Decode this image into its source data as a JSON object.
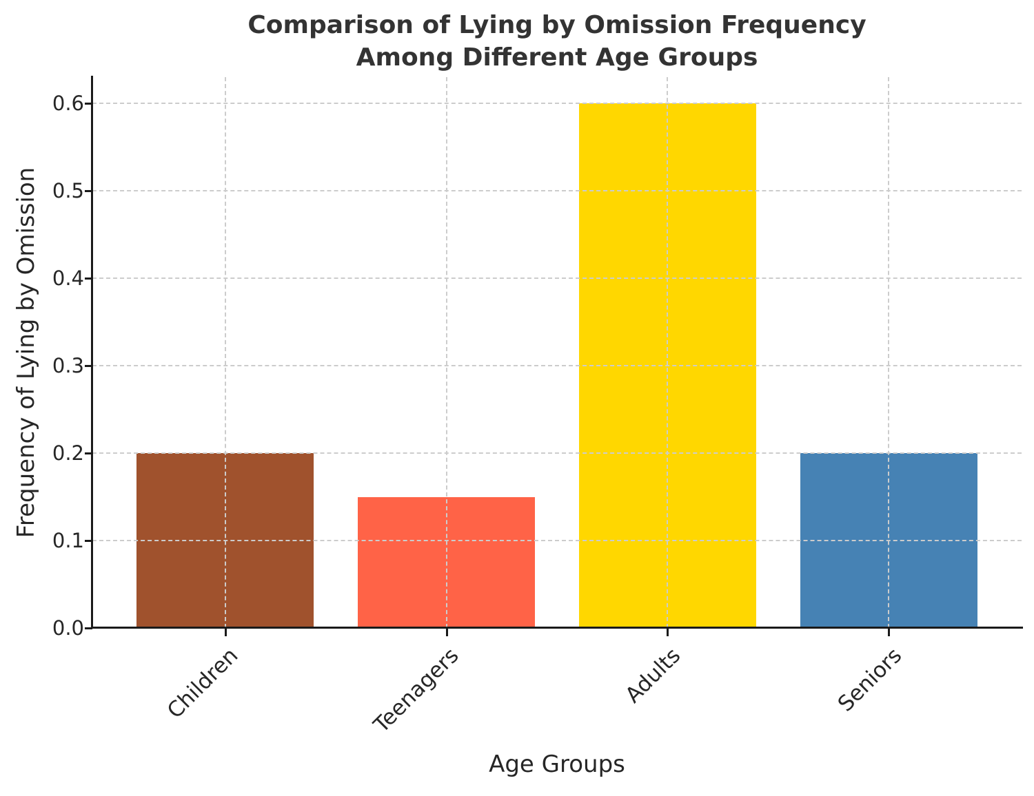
{
  "header": {
    "title_line1": "Comparison of Lying by Omission Frequency",
    "title_line2": "Among Different Age Groups"
  },
  "chart_data": {
    "type": "bar",
    "title": "Comparison of Lying by Omission Frequency Among Different Age Groups",
    "categories": [
      "Children",
      "Teenagers",
      "Adults",
      "Seniors"
    ],
    "values": [
      0.2,
      0.15,
      0.6,
      0.2
    ],
    "bar_colors": [
      "#A0522D",
      "#FF6347",
      "#FFD700",
      "#4682B4"
    ],
    "xlabel": "Age Groups",
    "ylabel": "Frequency of Lying by Omission",
    "ylim": [
      0,
      0.63
    ],
    "yticks": [
      0.0,
      0.1,
      0.2,
      0.3,
      0.4,
      0.5,
      0.6
    ],
    "ytick_labels": [
      "0.0",
      "0.1",
      "0.2",
      "0.3",
      "0.4",
      "0.5",
      "0.6"
    ],
    "grid": "dashed, both axes, drawn above bars",
    "legend": "none",
    "xticklabel_rotation_deg": 45
  },
  "colors": {
    "background": "#ffffff",
    "grid": "#cccccc",
    "axis": "#1a1a1a",
    "title_text": "#333333",
    "tick_text": "#262626"
  }
}
